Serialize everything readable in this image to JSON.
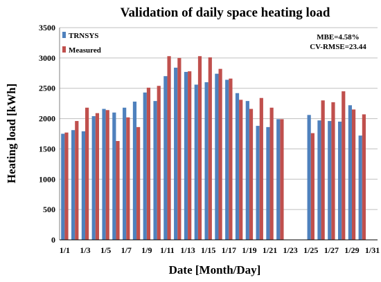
{
  "chart_data": {
    "type": "bar",
    "title": "Validation of daily space heating load",
    "xlabel": "Date [Month/Day]",
    "ylabel": "Heating load [kWh]",
    "ylim": [
      0,
      3500
    ],
    "yticks": [
      0,
      500,
      1000,
      1500,
      2000,
      2500,
      3000,
      3500
    ],
    "grid": true,
    "legend_position": "top-left",
    "categories": [
      "1/1",
      "1/2",
      "1/3",
      "1/4",
      "1/5",
      "1/6",
      "1/7",
      "1/8",
      "1/9",
      "1/10",
      "1/11",
      "1/12",
      "1/13",
      "1/14",
      "1/15",
      "1/16",
      "1/17",
      "1/18",
      "1/19",
      "1/20",
      "1/21",
      "1/22",
      "1/23",
      "1/24",
      "1/25",
      "1/26",
      "1/27",
      "1/28",
      "1/29",
      "1/30",
      "1/31"
    ],
    "tick_labels": [
      "1/1",
      "1/3",
      "1/5",
      "1/7",
      "1/9",
      "1/11",
      "1/13",
      "1/15",
      "1/17",
      "1/19",
      "1/21",
      "1/23",
      "1/25",
      "1/27",
      "1/29",
      "1/31"
    ],
    "series": [
      {
        "name": "TRNSYS",
        "color": "#4f81bd",
        "values": [
          1750,
          1810,
          1790,
          2040,
          2160,
          2100,
          2180,
          2280,
          2430,
          2290,
          2700,
          2840,
          2770,
          2560,
          2600,
          2740,
          2640,
          2420,
          2290,
          1880,
          1860,
          1990,
          null,
          null,
          2060,
          1970,
          1960,
          1950,
          2220,
          1720,
          null
        ]
      },
      {
        "name": "Measured",
        "color": "#c0504d",
        "values": [
          1770,
          1960,
          2180,
          2090,
          2140,
          1630,
          2020,
          1860,
          2510,
          2540,
          3030,
          3000,
          2780,
          3030,
          3010,
          2820,
          2660,
          2310,
          2160,
          2340,
          2180,
          1990,
          null,
          null,
          1760,
          2300,
          2270,
          2450,
          2150,
          2070,
          null
        ]
      }
    ],
    "annotations": [
      "MBE=4.58%",
      "CV-RMSE=23.44"
    ]
  }
}
